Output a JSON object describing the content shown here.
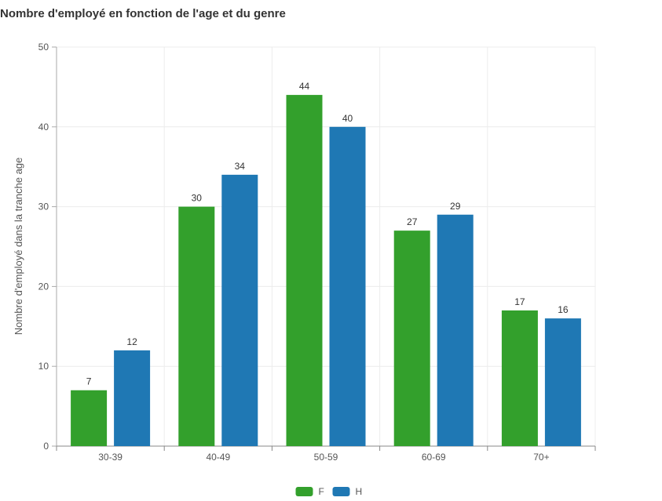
{
  "title": "Nombre d'employé en fonction de l'age et du genre",
  "chart_data": {
    "type": "bar",
    "title": "Nombre d'employé en fonction de l'age et du genre",
    "xlabel": "",
    "ylabel": "Nombre d'employé dans la tranche age",
    "categories": [
      "30-39",
      "40-49",
      "50-59",
      "60-69",
      "70+"
    ],
    "series": [
      {
        "name": "F",
        "values": [
          7,
          30,
          44,
          27,
          17
        ],
        "color": "#33a02c"
      },
      {
        "name": "H",
        "values": [
          12,
          34,
          40,
          29,
          16
        ],
        "color": "#1f78b4"
      }
    ],
    "ylim": [
      0,
      50
    ],
    "yticks": [
      0,
      10,
      20,
      30,
      40,
      50
    ],
    "grid": true,
    "legend": "bottom-center",
    "data_labels": true
  }
}
